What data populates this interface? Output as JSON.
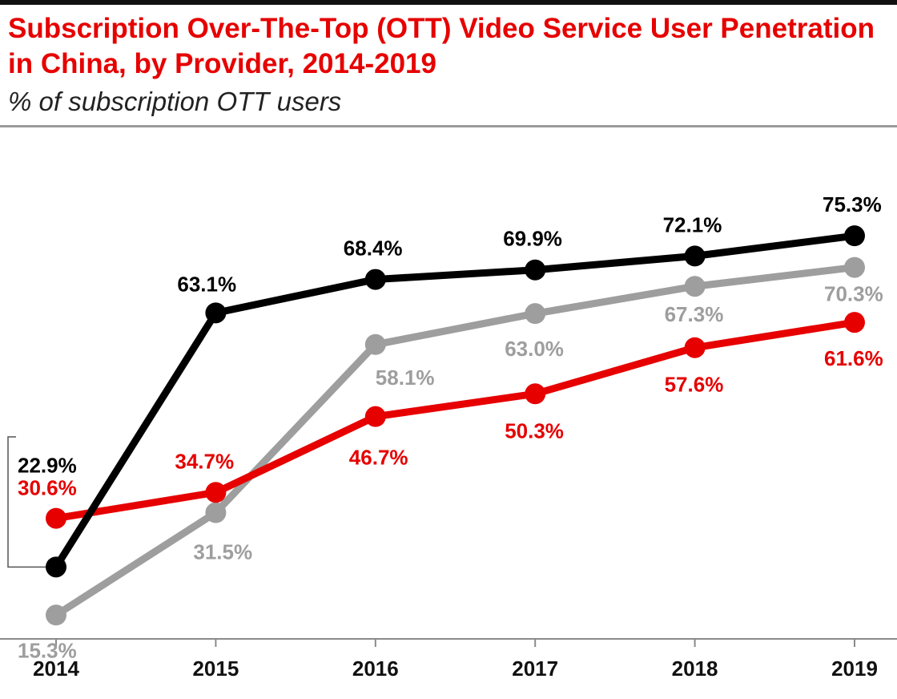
{
  "title": "Subscription Over-The-Top (OTT) Video Service User Penetration in China, by Provider, 2014-2019",
  "subtitle": "% of subscription OTT users",
  "chart_data": {
    "type": "line",
    "categories": [
      "2014",
      "2015",
      "2016",
      "2017",
      "2018",
      "2019"
    ],
    "series": [
      {
        "color": "#000000",
        "values": [
          22.9,
          63.1,
          68.4,
          69.9,
          72.1,
          75.3
        ],
        "labels": [
          "22.9%",
          "63.1%",
          "68.4%",
          "69.9%",
          "72.1%",
          "75.3%"
        ]
      },
      {
        "color": "#9e9e9e",
        "values": [
          15.3,
          31.5,
          58.1,
          63.0,
          67.3,
          70.3
        ],
        "labels": [
          "15.3%",
          "31.5%",
          "58.1%",
          "63.0%",
          "67.3%",
          "70.3%"
        ]
      },
      {
        "color": "#e60000",
        "values": [
          30.6,
          34.7,
          46.7,
          50.3,
          57.6,
          61.6
        ],
        "labels": [
          "30.6%",
          "34.7%",
          "46.7%",
          "50.3%",
          "57.6%",
          "61.6%"
        ]
      }
    ],
    "grid": false,
    "legend": "none"
  }
}
